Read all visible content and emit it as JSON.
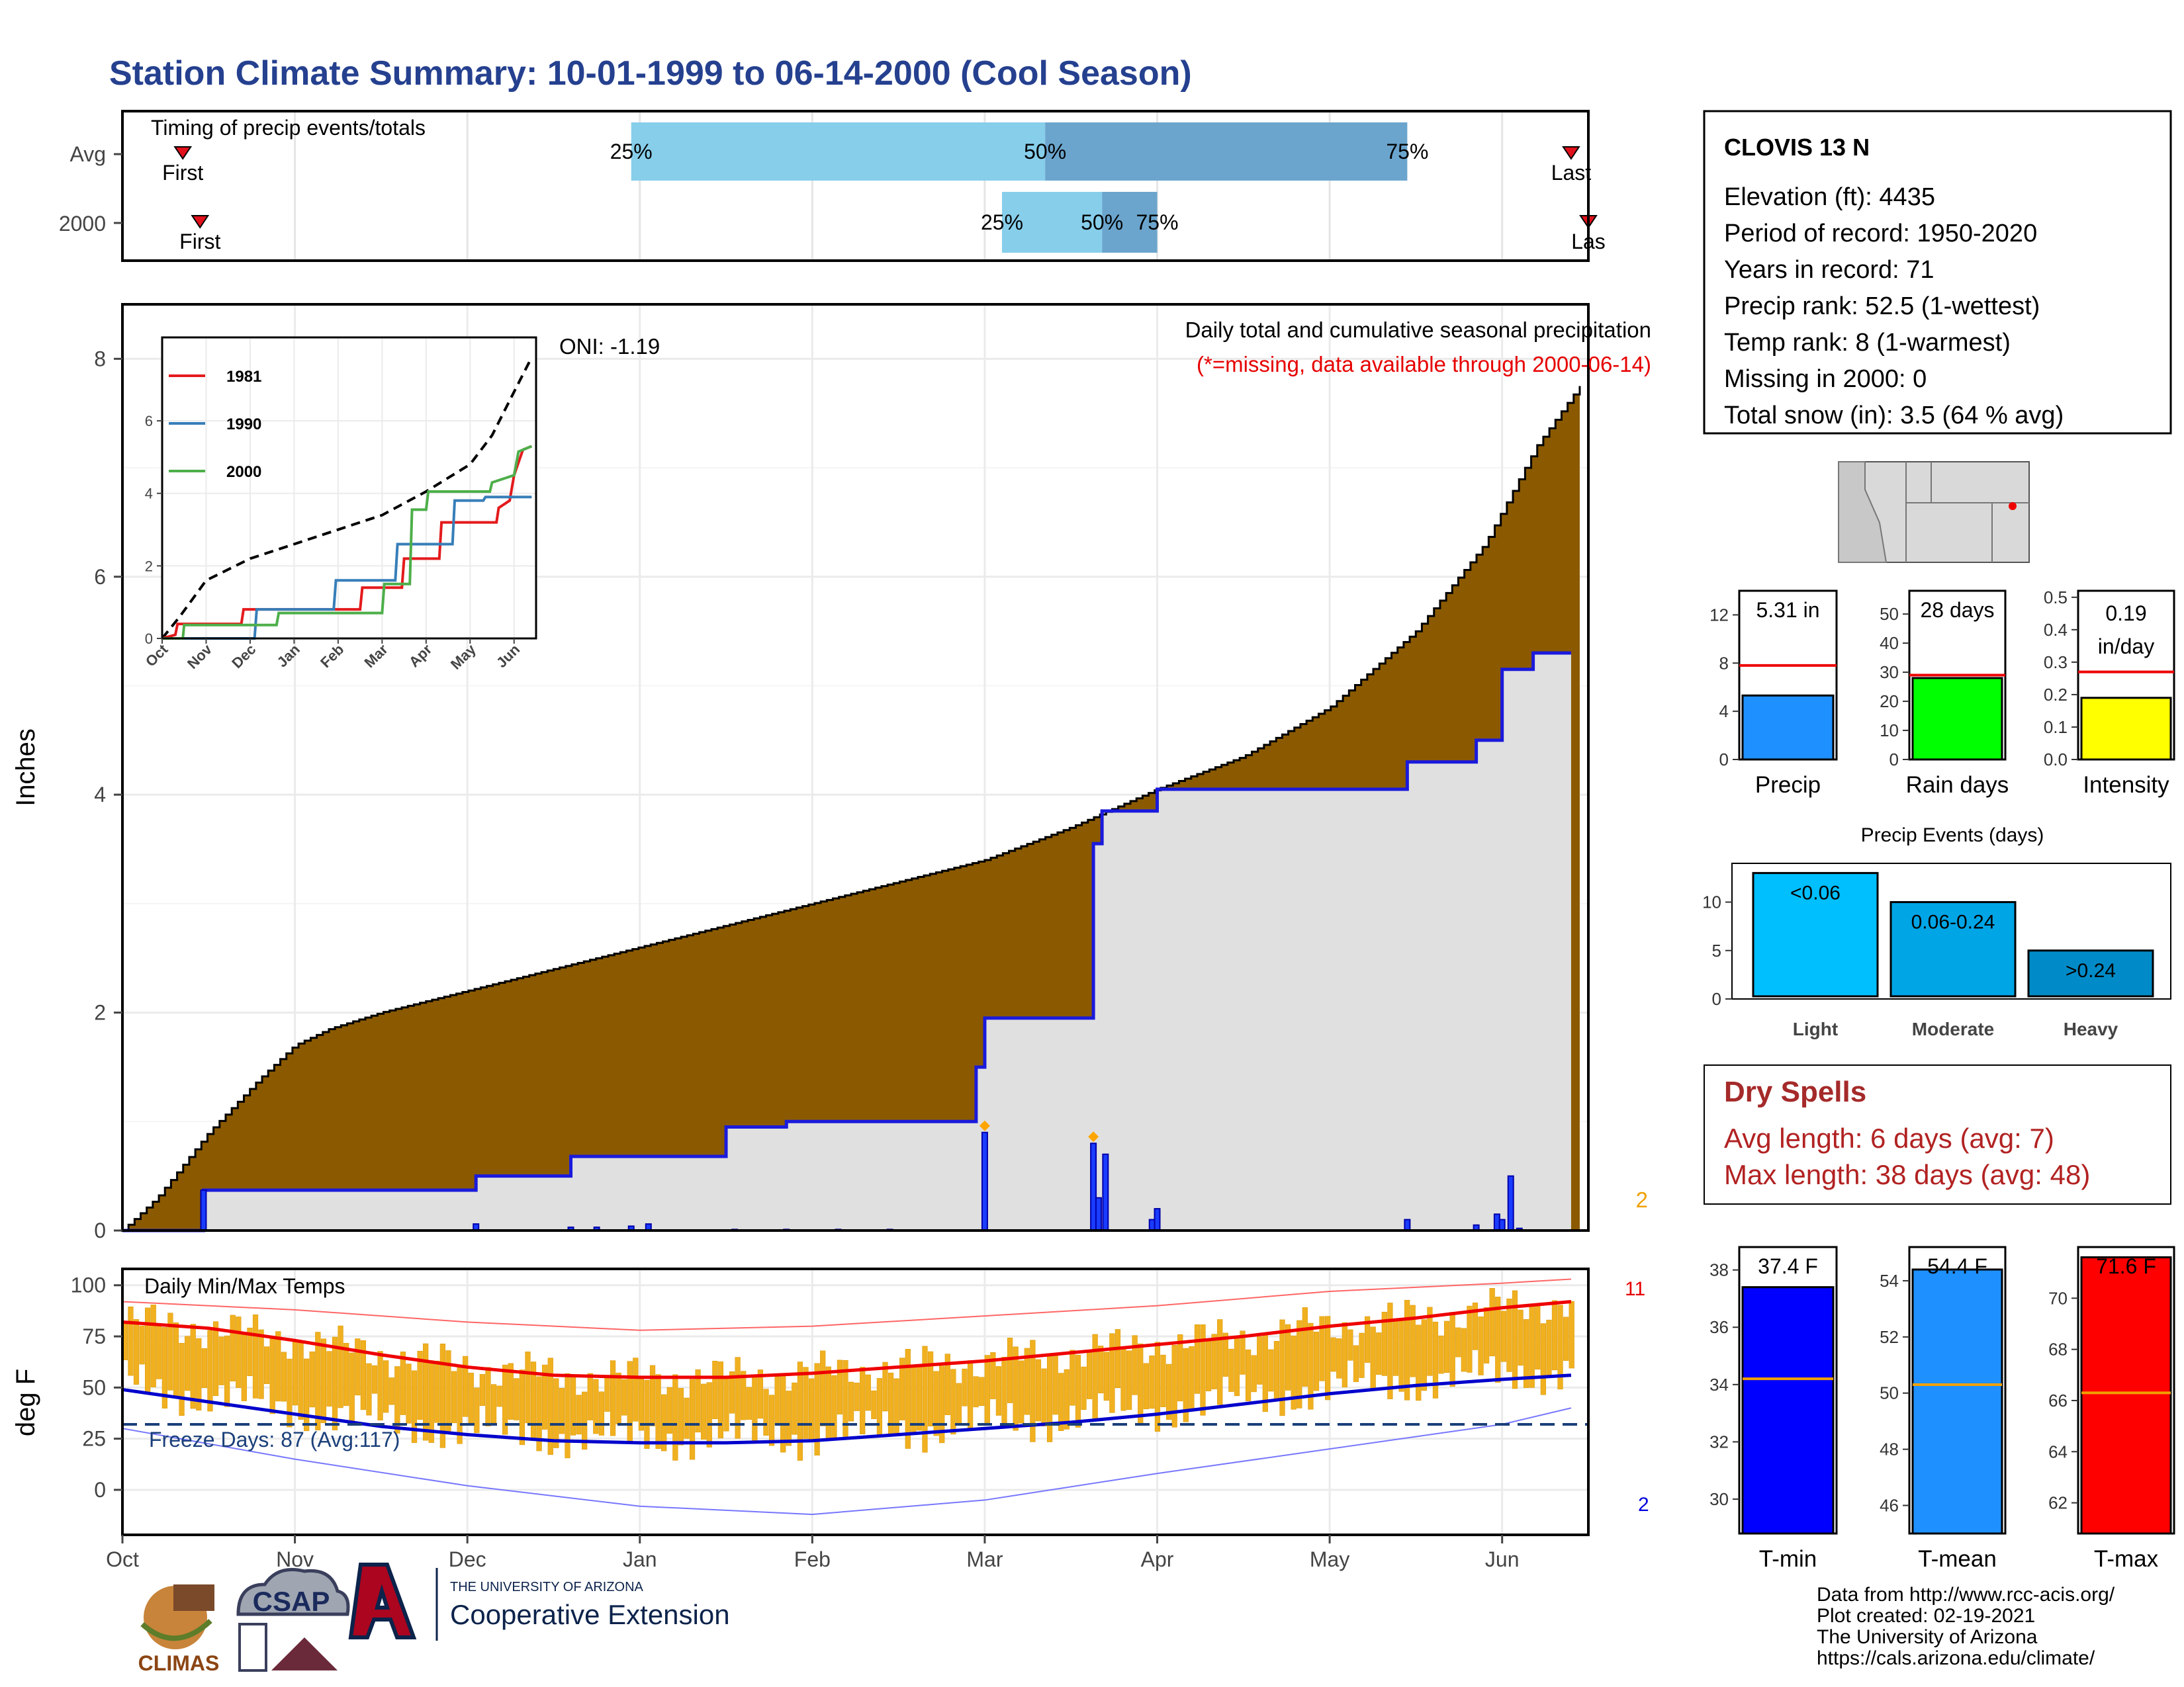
{
  "title": "Station Climate Summary: 10-01-1999 to 06-14-2000 (Cool Season)",
  "timing": {
    "title": "Timing of precip events/totals",
    "avg_label": "Avg",
    "year_label": "2000",
    "first_label": "First",
    "last_label": "Last",
    "last_label_clipped": "Las",
    "pct25": "25%",
    "pct50": "50%",
    "pct75": "75%",
    "avg_quartiles_month": [
      2.95,
      5.35,
      7.45
    ],
    "year_quartiles_month": [
      5.1,
      5.68,
      6.0
    ],
    "avg_first_month": 0.35,
    "avg_last_month": 8.4,
    "year_first_month": 0.45,
    "year_last_month": 8.5,
    "colors": {
      "light": "#87ceeb",
      "dark": "#6ba5cd",
      "marker": "#e0111b"
    }
  },
  "station": {
    "name": "CLOVIS 13 N",
    "lines": [
      "Elevation (ft): 4435",
      "Period of record: 1950-2020",
      "Years in record: 71",
      "Precip rank: 52.5 (1-wettest)",
      "Temp rank: 8 (1-warmest)",
      "Missing in 2000: 0",
      "Total snow (in): 3.5 (64 % avg)"
    ]
  },
  "precip_panel": {
    "ylabel": "Inches",
    "caption": "Daily total and cumulative seasonal precipitation",
    "note": "(*=missing, data available through 2000-06-14)",
    "oni": "ONI: -1.19",
    "corner_count": "2",
    "yticks": [
      "0",
      "2",
      "4",
      "6",
      "8"
    ]
  },
  "temp_panel": {
    "ylabel": "deg F",
    "title": "Daily Min/Max Temps",
    "freeze": "Freeze Days: 87 (Avg:117)",
    "count_high": "11",
    "count_low": "2",
    "yticks": [
      "0",
      "25",
      "50",
      "75",
      "100"
    ]
  },
  "months": [
    "Oct",
    "Nov",
    "Dec",
    "Jan",
    "Feb",
    "Mar",
    "Apr",
    "May",
    "Jun"
  ],
  "inset": {
    "months": [
      "Oct",
      "Nov",
      "Dec",
      "Jan",
      "Feb",
      "Mar",
      "Apr",
      "May",
      "Jun"
    ],
    "yticks": [
      "0",
      "2",
      "4",
      "6"
    ],
    "legend": [
      {
        "name": "1981",
        "color": "#e41a1c"
      },
      {
        "name": "1990",
        "color": "#377eb8"
      },
      {
        "name": "2000",
        "color": "#4daf4a"
      }
    ]
  },
  "small_bars": {
    "precip": {
      "value_label": "5.31 in",
      "axis_label": "Precip",
      "yticks": [
        "0",
        "4",
        "8",
        "12"
      ]
    },
    "rain_days": {
      "value_label": "28 days",
      "axis_label": "Rain days",
      "yticks": [
        "0",
        "10",
        "20",
        "30",
        "40",
        "50"
      ]
    },
    "intensity": {
      "value_label": "0.19",
      "value_label2": "in/day",
      "axis_label": "Intensity",
      "yticks": [
        "0.0",
        "0.1",
        "0.2",
        "0.3",
        "0.4",
        "0.5"
      ]
    }
  },
  "events": {
    "title": "Precip Events (days)",
    "yticks": [
      "0",
      "5",
      "10"
    ],
    "bars": [
      {
        "label": "<0.06",
        "category": "Light",
        "color": "#00bfff"
      },
      {
        "label": "0.06-0.24",
        "category": "Moderate",
        "color": "#00a5e6"
      },
      {
        "label": ">0.24",
        "category": "Heavy",
        "color": "#008bc8"
      }
    ]
  },
  "dry_spells": {
    "title": "Dry Spells",
    "avg": "Avg length: 6 days (avg: 7)",
    "max": "Max length: 38 days (avg: 48)"
  },
  "temp_bars": {
    "tmin": {
      "value_label": "37.4 F",
      "axis_label": "T-min",
      "yticks": [
        "30",
        "32",
        "34",
        "36",
        "38"
      ]
    },
    "tmean": {
      "value_label": "54.4 F",
      "axis_label": "T-mean",
      "yticks": [
        "46",
        "48",
        "50",
        "52",
        "54"
      ]
    },
    "tmax": {
      "value_label": "71.6 F",
      "axis_label": "T-max",
      "yticks": [
        "62",
        "64",
        "66",
        "68",
        "70"
      ]
    }
  },
  "credits": [
    "Data from http://www.rcc-acis.org/",
    "Plot created: 02-19-2021",
    "The University of Arizona",
    "https://cals.arizona.edu/climate/"
  ],
  "logos": {
    "climas": "CLIMAS",
    "csap": "CSAP",
    "ua_line1": "THE UNIVERSITY OF ARIZONA",
    "ua_line2": "Cooperative Extension"
  },
  "chart_data": [
    {
      "type": "area",
      "name": "cumulative_precip",
      "x_unit": "months since Oct 1",
      "ylim": [
        0,
        8.5
      ],
      "avg_cumulative": {
        "x": [
          0,
          0.2,
          0.5,
          0.8,
          1.0,
          1.2,
          1.5,
          2.0,
          2.5,
          3.0,
          3.5,
          4.0,
          4.5,
          5.0,
          5.5,
          6.0,
          6.5,
          7.0,
          7.5,
          7.9,
          8.2,
          8.45
        ],
        "y": [
          0,
          0.3,
          0.9,
          1.4,
          1.7,
          1.85,
          2.0,
          2.2,
          2.4,
          2.6,
          2.8,
          3.0,
          3.2,
          3.4,
          3.7,
          4.05,
          4.35,
          4.8,
          5.5,
          6.3,
          7.2,
          7.75
        ]
      },
      "year_cumulative": {
        "x": [
          0,
          0.47,
          0.47,
          2.05,
          2.05,
          2.6,
          2.6,
          3.5,
          3.5,
          3.85,
          3.85,
          4.95,
          4.95,
          5.0,
          5.0,
          5.63,
          5.63,
          5.68,
          5.68,
          6.0,
          6.0,
          7.45,
          7.45,
          7.85,
          7.85,
          8.0,
          8.0,
          8.18,
          8.18,
          8.4
        ],
        "y": [
          0,
          0,
          0.37,
          0.37,
          0.5,
          0.5,
          0.68,
          0.68,
          0.95,
          0.95,
          1.0,
          1.0,
          1.5,
          1.5,
          1.95,
          1.95,
          3.55,
          3.55,
          3.85,
          3.85,
          4.05,
          4.05,
          4.3,
          4.3,
          4.5,
          4.5,
          5.15,
          5.15,
          5.3,
          5.3
        ]
      },
      "daily": {
        "x": [
          0.47,
          2.05,
          2.6,
          2.75,
          2.95,
          3.05,
          3.55,
          3.85,
          4.15,
          4.45,
          5.0,
          5.63,
          5.66,
          5.7,
          5.97,
          6.0,
          7.45,
          7.85,
          7.97,
          8.0,
          8.05,
          8.1
        ],
        "y": [
          0.37,
          0.06,
          0.03,
          0.03,
          0.04,
          0.06,
          0.01,
          0.01,
          0.01,
          0.01,
          0.9,
          0.8,
          0.3,
          0.7,
          0.1,
          0.2,
          0.1,
          0.05,
          0.15,
          0.1,
          0.5,
          0.02
        ]
      }
    },
    {
      "type": "line",
      "name": "inset_cumulative_comparison",
      "xlim": [
        0,
        8.5
      ],
      "ylim": [
        0,
        8.3
      ],
      "series": [
        {
          "name": "",
          "style": "dashed",
          "x": [
            0,
            0.4,
            1.0,
            2.0,
            3.0,
            4.0,
            5.0,
            6.0,
            7.0,
            7.5,
            8.0,
            8.4
          ],
          "y": [
            0,
            0.6,
            1.6,
            2.2,
            2.6,
            3.0,
            3.4,
            4.05,
            4.8,
            5.6,
            6.8,
            7.75
          ]
        },
        {
          "name": "1981",
          "x": [
            0,
            0.3,
            0.35,
            1.8,
            1.85,
            4.5,
            4.55,
            5.45,
            5.5,
            6.3,
            6.35,
            7.6,
            7.65,
            7.9,
            8.0,
            8.2,
            8.4
          ],
          "y": [
            0,
            0.1,
            0.4,
            0.4,
            0.8,
            0.8,
            1.4,
            1.4,
            2.2,
            2.2,
            3.2,
            3.2,
            3.6,
            3.8,
            4.5,
            5.2,
            5.3
          ]
        },
        {
          "name": "1990",
          "x": [
            0,
            2.1,
            2.15,
            3.9,
            3.95,
            5.3,
            5.35,
            6.6,
            6.65,
            7.3,
            7.35,
            8.4
          ],
          "y": [
            0,
            0,
            0.8,
            0.8,
            1.6,
            1.6,
            2.6,
            2.6,
            3.8,
            3.8,
            3.9,
            3.9
          ]
        },
        {
          "name": "2000",
          "x": [
            0,
            0.47,
            0.5,
            2.6,
            2.65,
            5.0,
            5.05,
            5.63,
            5.68,
            6.0,
            6.05,
            7.45,
            7.5,
            8.0,
            8.1,
            8.4
          ],
          "y": [
            0,
            0,
            0.37,
            0.37,
            0.7,
            0.7,
            1.5,
            1.5,
            3.55,
            3.55,
            4.05,
            4.05,
            4.3,
            4.5,
            5.15,
            5.3
          ]
        }
      ]
    },
    {
      "type": "line",
      "name": "daily_temperatures",
      "ylim": [
        -22,
        108
      ],
      "freeze_line": 32,
      "avg_max": {
        "x": [
          0,
          0.5,
          1.0,
          1.5,
          2.0,
          2.5,
          3.0,
          3.5,
          4.0,
          4.5,
          5.0,
          5.5,
          6.0,
          6.5,
          7.0,
          7.5,
          8.0,
          8.4
        ],
        "y": [
          82,
          79,
          73,
          66,
          60,
          56,
          55,
          55,
          57,
          60,
          63,
          67,
          71,
          75,
          80,
          84,
          89,
          92
        ]
      },
      "avg_min": {
        "x": [
          0,
          0.5,
          1.0,
          1.5,
          2.0,
          2.5,
          3.0,
          3.5,
          4.0,
          4.5,
          5.0,
          5.5,
          6.0,
          6.5,
          7.0,
          7.5,
          8.0,
          8.4
        ],
        "y": [
          49,
          43,
          37,
          31,
          27,
          24,
          23,
          23,
          24,
          27,
          30,
          33,
          37,
          42,
          47,
          51,
          54,
          56
        ]
      },
      "record_max": {
        "x": [
          0,
          1,
          2,
          3,
          4,
          5,
          6,
          7,
          8,
          8.4
        ],
        "y": [
          92,
          88,
          82,
          78,
          80,
          85,
          90,
          97,
          101,
          103
        ]
      },
      "record_min": {
        "x": [
          0,
          1,
          2,
          3,
          4,
          5,
          6,
          7,
          8,
          8.4
        ],
        "y": [
          30,
          15,
          2,
          -8,
          -12,
          -5,
          8,
          20,
          32,
          40
        ]
      }
    },
    {
      "type": "bar",
      "name": "precip_total",
      "values": [
        5.31
      ],
      "avg": 7.8,
      "ylim": [
        0,
        14
      ]
    },
    {
      "type": "bar",
      "name": "rain_days",
      "values": [
        28
      ],
      "avg": 29,
      "ylim": [
        0,
        58
      ]
    },
    {
      "type": "bar",
      "name": "intensity",
      "values": [
        0.19
      ],
      "avg": 0.27,
      "ylim": [
        0,
        0.52
      ]
    },
    {
      "type": "bar",
      "name": "precip_events",
      "categories": [
        "Light",
        "Moderate",
        "Heavy"
      ],
      "values": [
        13,
        10,
        5
      ],
      "ylim": [
        0,
        14
      ]
    },
    {
      "type": "bar",
      "name": "tmin",
      "values": [
        37.4
      ],
      "avg": 34.2,
      "ylim": [
        28.8,
        38.8
      ]
    },
    {
      "type": "bar",
      "name": "tmean",
      "values": [
        54.4
      ],
      "avg": 50.3,
      "ylim": [
        45,
        55.2
      ]
    },
    {
      "type": "bar",
      "name": "tmax",
      "values": [
        71.6
      ],
      "avg": 66.3,
      "ylim": [
        60.8,
        72
      ]
    }
  ]
}
